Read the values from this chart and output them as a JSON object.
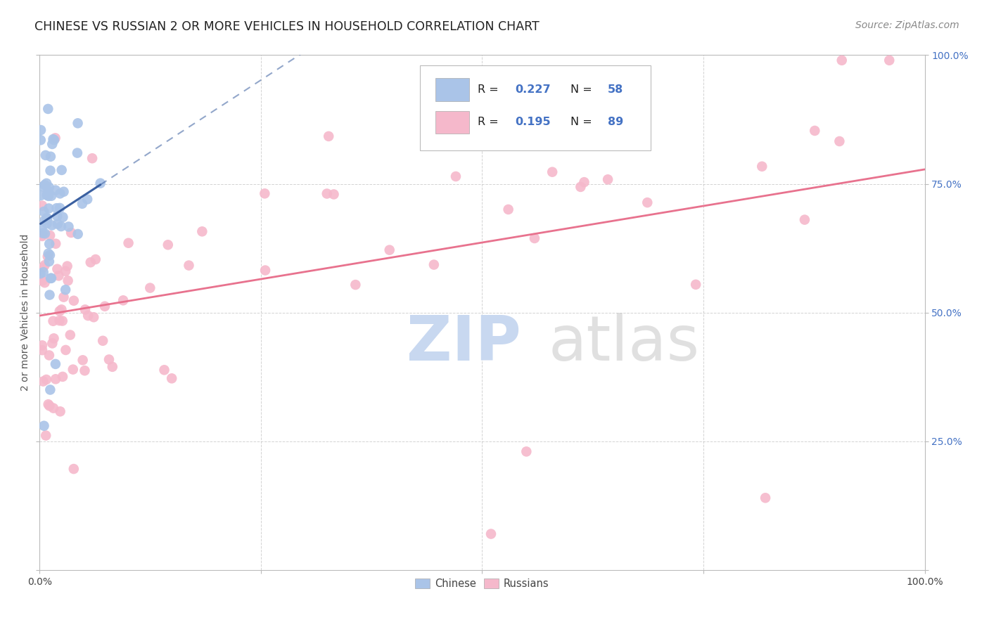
{
  "title": "CHINESE VS RUSSIAN 2 OR MORE VEHICLES IN HOUSEHOLD CORRELATION CHART",
  "ylabel": "2 or more Vehicles in Household",
  "source": "Source: ZipAtlas.com",
  "xlim": [
    0,
    1
  ],
  "ylim": [
    0,
    1
  ],
  "chinese_color": "#aac4e8",
  "russian_color": "#f5b8cb",
  "chinese_line_color": "#3a5fa0",
  "russian_line_color": "#e8728e",
  "grid_color": "#c8c8c8",
  "background_color": "#ffffff",
  "title_fontsize": 12.5,
  "axis_label_fontsize": 10,
  "tick_fontsize": 10,
  "source_fontsize": 10,
  "watermark_zip_color": "#c8d8f0",
  "watermark_atlas_color": "#c8c8c8",
  "chinese_N": 58,
  "russian_N": 89,
  "chinese_R": "0.227",
  "russian_R": "0.195",
  "legend_blue": "#4472c4",
  "tick_right_color": "#4472c4"
}
